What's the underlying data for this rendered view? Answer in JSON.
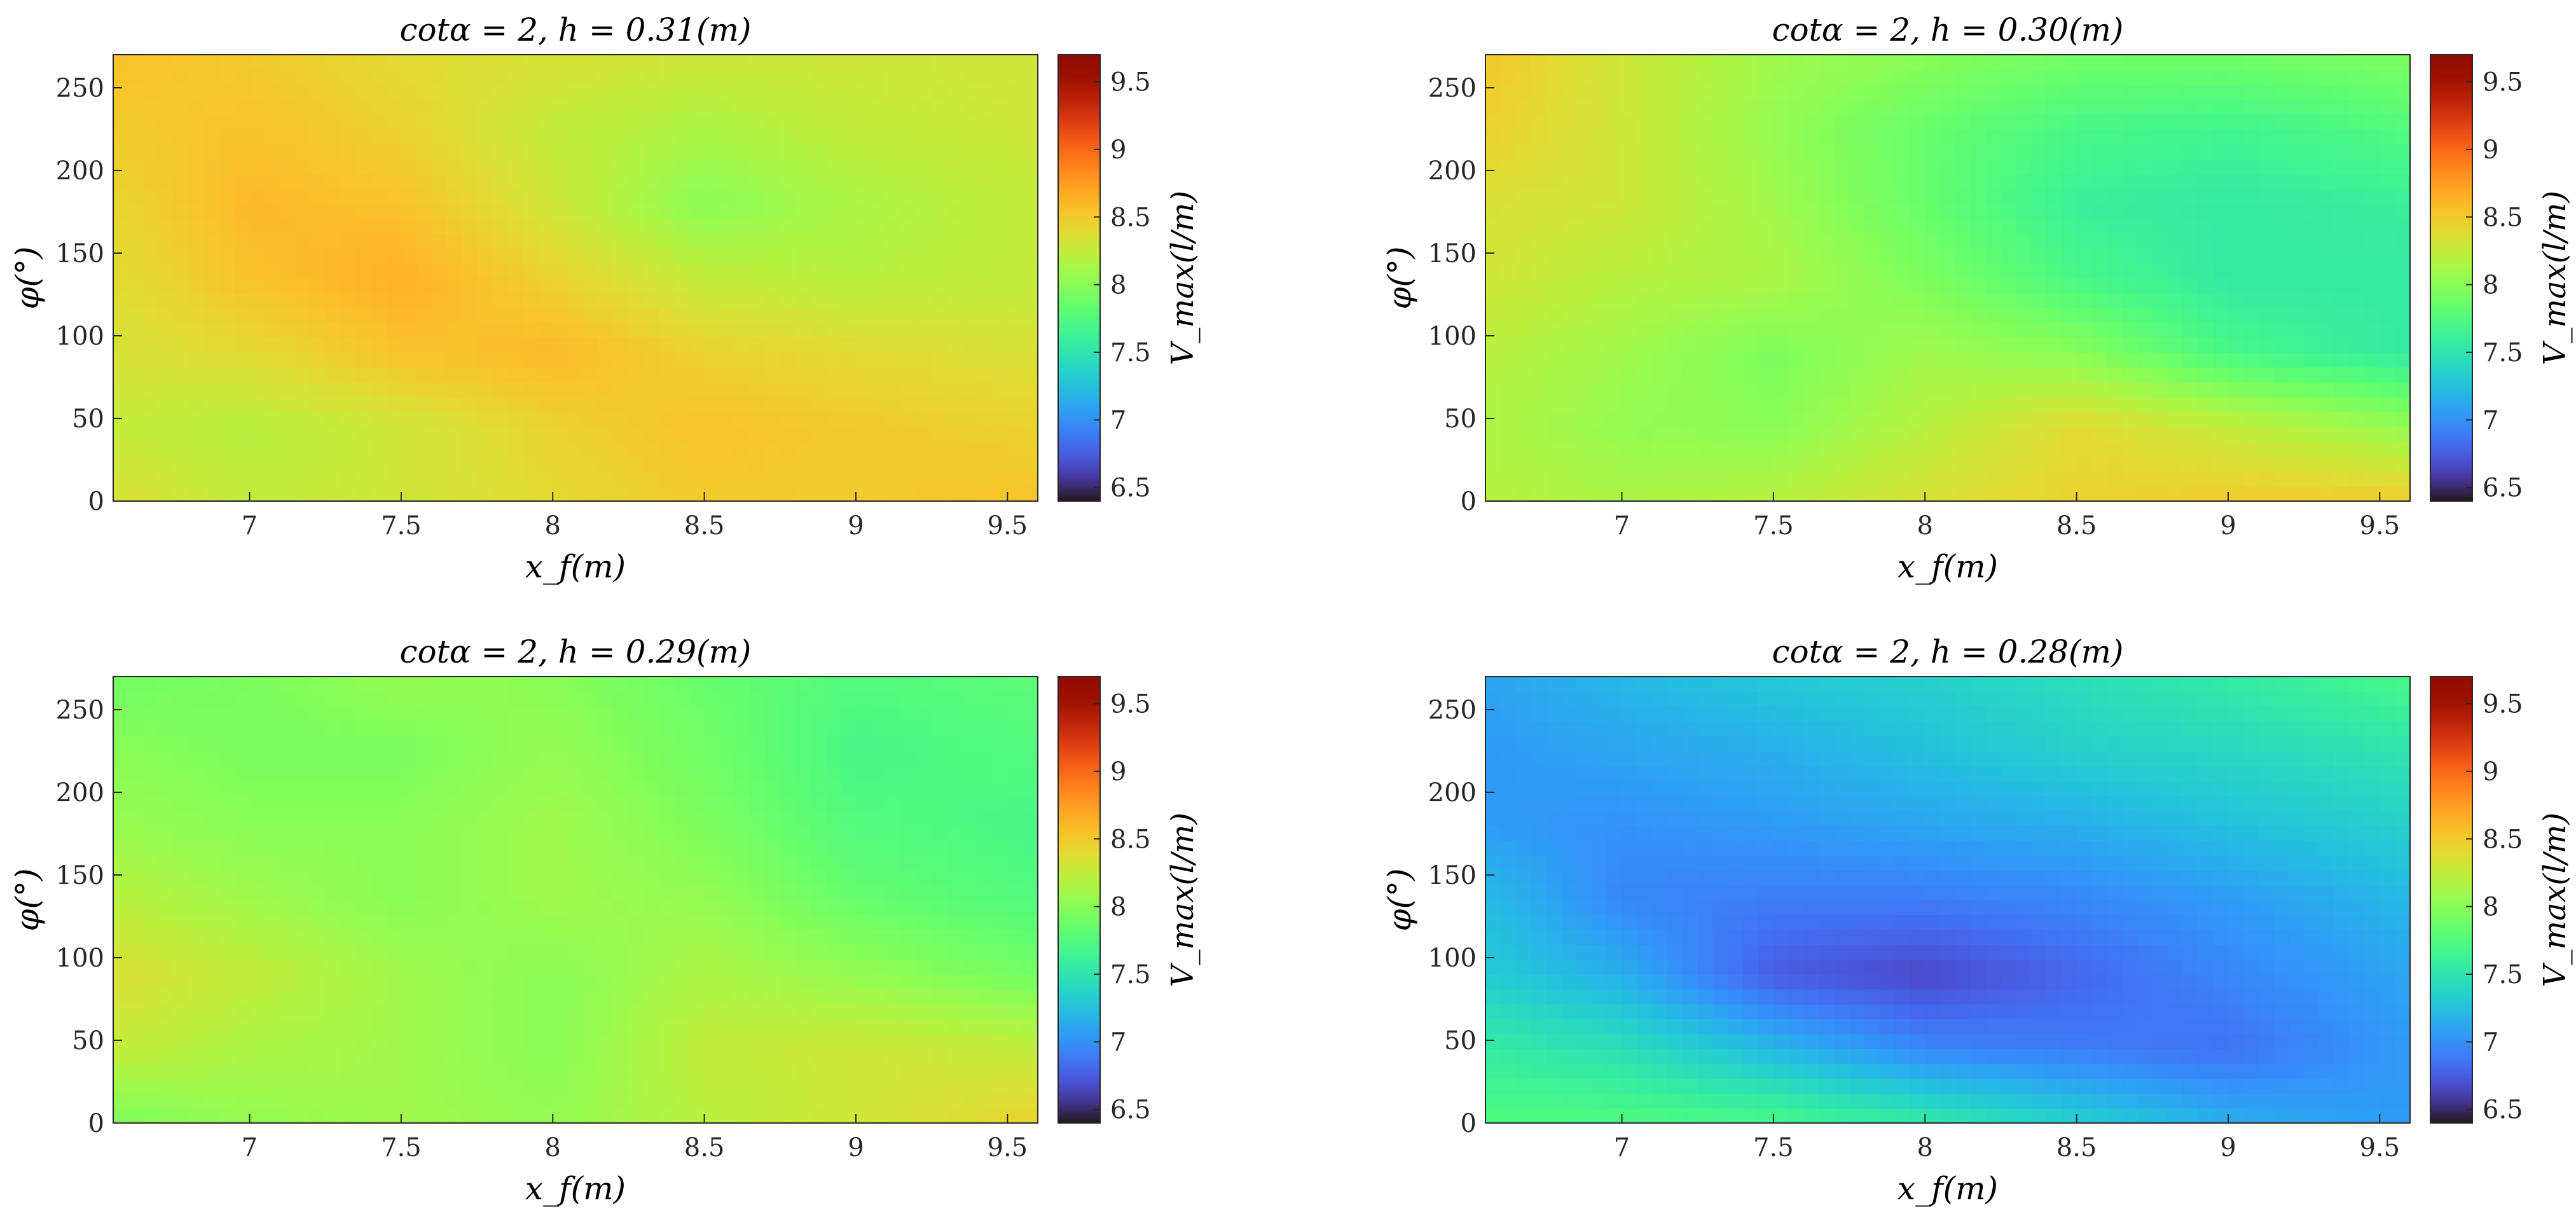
{
  "figure": {
    "colorbar": {
      "min": 6.4,
      "max": 9.7,
      "ticks": [
        "6.5",
        "7",
        "7.5",
        "8",
        "8.5",
        "9",
        "9.5"
      ],
      "colormap": "turbo"
    }
  },
  "chart_data": [
    {
      "type": "heatmap",
      "title": "cotα = 2, h = 0.31(m)",
      "xlabel": "x_f(m)",
      "ylabel": "φ(°)",
      "colorbar_label": "V_max(l/m)",
      "xlim": [
        6.55,
        9.6
      ],
      "ylim": [
        0,
        270
      ],
      "xticks": [
        "7",
        "7.5",
        "8",
        "8.5",
        "9",
        "9.5"
      ],
      "yticks": [
        "0",
        "50",
        "100",
        "150",
        "200",
        "250"
      ],
      "clim": [
        6.4,
        9.7
      ],
      "x": [
        6.6,
        7.0,
        7.5,
        8.0,
        8.5,
        9.0,
        9.6
      ],
      "y": [
        0,
        45,
        90,
        135,
        180,
        225,
        270
      ],
      "z": [
        [
          8.35,
          8.25,
          8.3,
          8.4,
          8.5,
          8.5,
          8.55
        ],
        [
          8.25,
          8.2,
          8.3,
          8.45,
          8.55,
          8.5,
          8.45
        ],
        [
          8.35,
          8.4,
          8.55,
          8.6,
          8.45,
          8.4,
          8.35
        ],
        [
          8.4,
          8.55,
          8.65,
          8.45,
          8.25,
          8.2,
          8.25
        ],
        [
          8.45,
          8.6,
          8.55,
          8.3,
          8.0,
          8.15,
          8.25
        ],
        [
          8.5,
          8.55,
          8.45,
          8.25,
          8.15,
          8.25,
          8.3
        ],
        [
          8.55,
          8.5,
          8.4,
          8.35,
          8.3,
          8.3,
          8.3
        ]
      ]
    },
    {
      "type": "heatmap",
      "title": "cotα = 2, h = 0.30(m)",
      "xlabel": "x_f(m)",
      "ylabel": "φ(°)",
      "colorbar_label": "V_max(l/m)",
      "xlim": [
        6.55,
        9.6
      ],
      "ylim": [
        0,
        270
      ],
      "xticks": [
        "7",
        "7.5",
        "8",
        "8.5",
        "9",
        "9.5"
      ],
      "yticks": [
        "0",
        "50",
        "100",
        "150",
        "200",
        "250"
      ],
      "clim": [
        6.4,
        9.7
      ],
      "x": [
        6.6,
        7.0,
        7.5,
        8.0,
        8.5,
        9.0,
        9.6
      ],
      "y": [
        0,
        45,
        90,
        135,
        180,
        225,
        270
      ],
      "z": [
        [
          8.2,
          8.15,
          8.2,
          8.35,
          8.45,
          8.5,
          8.5
        ],
        [
          8.15,
          8.05,
          8.0,
          8.2,
          8.4,
          8.25,
          8.05
        ],
        [
          8.2,
          8.1,
          7.95,
          8.1,
          8.0,
          7.7,
          7.55
        ],
        [
          8.3,
          8.2,
          8.15,
          7.95,
          7.7,
          7.55,
          7.55
        ],
        [
          8.35,
          8.3,
          8.1,
          7.85,
          7.6,
          7.55,
          7.6
        ],
        [
          8.45,
          8.3,
          8.05,
          7.85,
          7.7,
          7.65,
          7.75
        ],
        [
          8.5,
          8.3,
          8.1,
          8.0,
          7.9,
          7.9,
          7.95
        ]
      ]
    },
    {
      "type": "heatmap",
      "title": "cotα = 2, h = 0.29(m)",
      "xlabel": "x_f(m)",
      "ylabel": "φ(°)",
      "colorbar_label": "V_max(l/m)",
      "xlim": [
        6.55,
        9.6
      ],
      "ylim": [
        0,
        270
      ],
      "xticks": [
        "7",
        "7.5",
        "8",
        "8.5",
        "9",
        "9.5"
      ],
      "yticks": [
        "0",
        "50",
        "100",
        "150",
        "200",
        "250"
      ],
      "clim": [
        6.4,
        9.7
      ],
      "x": [
        6.6,
        7.0,
        7.5,
        8.0,
        8.5,
        9.0,
        9.6
      ],
      "y": [
        0,
        45,
        90,
        135,
        180,
        225,
        270
      ],
      "z": [
        [
          7.95,
          8.05,
          8.1,
          8.05,
          8.2,
          8.3,
          8.45
        ],
        [
          8.25,
          8.15,
          8.1,
          8.0,
          8.25,
          8.3,
          8.25
        ],
        [
          8.35,
          8.25,
          8.1,
          8.0,
          8.15,
          8.05,
          7.9
        ],
        [
          8.2,
          8.1,
          8.0,
          8.1,
          8.05,
          7.85,
          7.75
        ],
        [
          8.05,
          8.0,
          8.0,
          8.1,
          7.95,
          7.75,
          7.7
        ],
        [
          8.0,
          7.95,
          7.95,
          8.05,
          7.9,
          7.7,
          7.75
        ],
        [
          7.9,
          7.95,
          8.05,
          8.0,
          7.85,
          7.75,
          7.8
        ]
      ]
    },
    {
      "type": "heatmap",
      "title": "cotα = 2, h = 0.28(m)",
      "xlabel": "x_f(m)",
      "ylabel": "φ(°)",
      "colorbar_label": "V_max(l/m)",
      "xlim": [
        6.55,
        9.6
      ],
      "ylim": [
        0,
        270
      ],
      "xticks": [
        "7",
        "7.5",
        "8",
        "8.5",
        "9",
        "9.5"
      ],
      "yticks": [
        "0",
        "50",
        "100",
        "150",
        "200",
        "250"
      ],
      "clim": [
        6.4,
        9.7
      ],
      "x": [
        6.6,
        7.0,
        7.5,
        8.0,
        8.5,
        9.0,
        9.6
      ],
      "y": [
        0,
        45,
        90,
        135,
        180,
        225,
        270
      ],
      "z": [
        [
          7.75,
          7.75,
          7.7,
          7.55,
          7.35,
          7.15,
          7.05
        ],
        [
          7.55,
          7.45,
          7.2,
          6.95,
          6.9,
          6.85,
          7.05
        ],
        [
          7.3,
          7.15,
          6.75,
          6.65,
          6.8,
          6.95,
          7.1
        ],
        [
          7.2,
          6.95,
          6.9,
          6.9,
          6.95,
          7.05,
          7.2
        ],
        [
          7.05,
          7.0,
          7.05,
          7.1,
          7.15,
          7.25,
          7.35
        ],
        [
          7.05,
          7.1,
          7.15,
          7.25,
          7.35,
          7.4,
          7.5
        ],
        [
          7.1,
          7.2,
          7.3,
          7.35,
          7.45,
          7.55,
          7.7
        ]
      ]
    }
  ]
}
